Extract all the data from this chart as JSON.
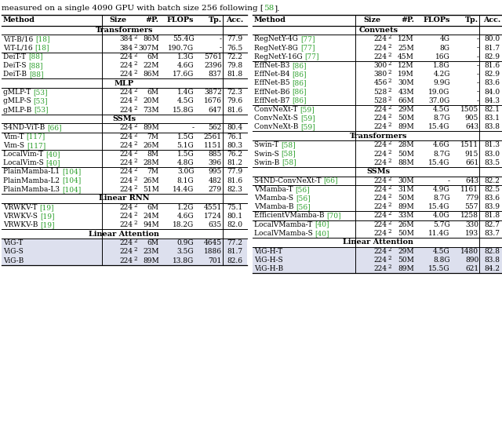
{
  "title_parts": [
    {
      "text": "measured on a single 4090 GPU with batch size 256 following [",
      "color": "black"
    },
    {
      "text": "58",
      "color": "#2ca02c"
    },
    {
      "text": "].",
      "color": "black"
    }
  ],
  "left_table": {
    "sections": [
      {
        "section_title": "Transformers",
        "rows": [
          [
            "ViT-B/16 ",
            "[18]",
            "384",
            "86M",
            "55.4G",
            "-",
            "77.9"
          ],
          [
            "ViT-L/16 ",
            "[18]",
            "384",
            "307M",
            "190.7G",
            "-",
            "76.5"
          ]
        ]
      },
      {
        "section_title": null,
        "rows": [
          [
            "DeiT-T ",
            "[88]",
            "224",
            "6M",
            "1.3G",
            "5761",
            "72.2"
          ],
          [
            "DeiT-S ",
            "[88]",
            "224",
            "22M",
            "4.6G",
            "2396",
            "79.8"
          ],
          [
            "DeiT-B ",
            "[88]",
            "224",
            "86M",
            "17.6G",
            "837",
            "81.8"
          ]
        ]
      },
      {
        "section_title": "MLP",
        "rows": [
          [
            "gMLP-T ",
            "[53]",
            "224",
            "6M",
            "1.4G",
            "3872",
            "72.3"
          ],
          [
            "gMLP-S ",
            "[53]",
            "224",
            "20M",
            "4.5G",
            "1676",
            "79.6"
          ],
          [
            "gMLP-B ",
            "[53]",
            "224",
            "73M",
            "15.8G",
            "647",
            "81.6"
          ]
        ]
      },
      {
        "section_title": "SSMs",
        "rows": [
          [
            "S4ND-ViT-B ",
            "[66]",
            "224",
            "89M",
            "-",
            "562",
            "80.4"
          ]
        ]
      },
      {
        "section_title": null,
        "rows": [
          [
            "Vim-T ",
            "[117]",
            "224",
            "7M",
            "1.5G",
            "2561",
            "76.1"
          ],
          [
            "Vim-S ",
            "[117]",
            "224",
            "26M",
            "5.1G",
            "1151",
            "80.3"
          ]
        ]
      },
      {
        "section_title": null,
        "rows": [
          [
            "LocalVim-T ",
            "[40]",
            "224",
            "8M",
            "1.5G",
            "885",
            "76.2"
          ],
          [
            "LocalVim-S ",
            "[40]",
            "224",
            "28M",
            "4.8G",
            "396",
            "81.2"
          ]
        ]
      },
      {
        "section_title": null,
        "rows": [
          [
            "PlainMamba-L1 ",
            "[104]",
            "224",
            "7M",
            "3.0G",
            "995",
            "77.9"
          ],
          [
            "PlainMamba-L2 ",
            "[104]",
            "224",
            "26M",
            "8.1G",
            "482",
            "81.6"
          ],
          [
            "PlainMamba-L3 ",
            "[104]",
            "224",
            "51M",
            "14.4G",
            "279",
            "82.3"
          ]
        ]
      },
      {
        "section_title": "Linear RNN",
        "rows": [
          [
            "VRWKV-T ",
            "[19]",
            "224",
            "6M",
            "1.2G",
            "4551",
            "75.1"
          ],
          [
            "VRWKV-S ",
            "[19]",
            "224",
            "24M",
            "4.6G",
            "1724",
            "80.1"
          ],
          [
            "VRWKV-B ",
            "[19]",
            "224",
            "94M",
            "18.2G",
            "635",
            "82.0"
          ]
        ]
      },
      {
        "section_title": "Linear Attention",
        "highlight": true,
        "rows": [
          [
            "ViG-T",
            "",
            "224",
            "6M",
            "0.9G",
            "4645",
            "77.2"
          ],
          [
            "ViG-S",
            "",
            "224",
            "23M",
            "3.5G",
            "1886",
            "81.7"
          ],
          [
            "ViG-B",
            "",
            "224",
            "89M",
            "13.8G",
            "701",
            "82.6"
          ]
        ]
      }
    ]
  },
  "right_table": {
    "sections": [
      {
        "section_title": "Convnets",
        "rows": [
          [
            "RegNetY-4G ",
            "[77]",
            "224",
            "12M",
            "4G",
            "-",
            "80.0"
          ],
          [
            "RegNetY-8G ",
            "[77]",
            "224",
            "25M",
            "8G",
            "-",
            "81.7"
          ],
          [
            "RegNetY-16G ",
            "[77]",
            "224",
            "45M",
            "16G",
            "-",
            "82.9"
          ]
        ]
      },
      {
        "section_title": null,
        "rows": [
          [
            "EffNet-B3 ",
            "[86]",
            "300",
            "12M",
            "1.8G",
            "-",
            "81.6"
          ],
          [
            "EffNet-B4 ",
            "[86]",
            "380",
            "19M",
            "4.2G",
            "-",
            "82.9"
          ],
          [
            "EffNet-B5 ",
            "[86]",
            "456",
            "30M",
            "9.9G",
            "-",
            "83.6"
          ],
          [
            "EffNet-B6 ",
            "[86]",
            "528",
            "43M",
            "19.0G",
            "-",
            "84.0"
          ],
          [
            "EffNet-B7 ",
            "[86]",
            "528",
            "66M",
            "37.0G",
            "-",
            "84.3"
          ]
        ]
      },
      {
        "section_title": null,
        "rows": [
          [
            "ConvNeXt-T ",
            "[59]",
            "224",
            "29M",
            "4.5G",
            "1505",
            "82.1"
          ],
          [
            "ConvNeXt-S ",
            "[59]",
            "224",
            "50M",
            "8.7G",
            "905",
            "83.1"
          ],
          [
            "ConvNeXt-B ",
            "[59]",
            "224",
            "89M",
            "15.4G",
            "643",
            "83.8"
          ]
        ]
      },
      {
        "section_title": "Transformers",
        "rows": [
          [
            "Swin-T ",
            "[58]",
            "224",
            "28M",
            "4.6G",
            "1511",
            "81.3"
          ],
          [
            "Swin-S ",
            "[58]",
            "224",
            "50M",
            "8.7G",
            "915",
            "83.0"
          ],
          [
            "Swin-B ",
            "[58]",
            "224",
            "88M",
            "15.4G",
            "661",
            "83.5"
          ]
        ]
      },
      {
        "section_title": "SSMs",
        "rows": [
          [
            "S4ND-ConvNeXt-T ",
            "[66]",
            "224",
            "30M",
            "-",
            "643",
            "82.2"
          ]
        ]
      },
      {
        "section_title": null,
        "rows": [
          [
            "VMamba-T ",
            "[56]",
            "224",
            "31M",
            "4.9G",
            "1161",
            "82.5"
          ],
          [
            "VMamba-S ",
            "[56]",
            "224",
            "50M",
            "8.7G",
            "779",
            "83.6"
          ],
          [
            "VMamba-B ",
            "[56]",
            "224",
            "89M",
            "15.4G",
            "557",
            "83.9"
          ]
        ]
      },
      {
        "section_title": null,
        "rows": [
          [
            "EfficientVMamba-B ",
            "[70]",
            "224",
            "33M",
            "4.0G",
            "1258",
            "81.8"
          ]
        ]
      },
      {
        "section_title": null,
        "rows": [
          [
            "LocalVMamba-T ",
            "[40]",
            "224",
            "26M",
            "5.7G",
            "330",
            "82.7"
          ],
          [
            "LocalVMamba-S ",
            "[40]",
            "224",
            "50M",
            "11.4G",
            "193",
            "83.7"
          ]
        ]
      },
      {
        "section_title": "Linear Attention",
        "highlight": true,
        "rows": [
          [
            "ViG-H-T",
            "",
            "224",
            "29M",
            "4.5G",
            "1480",
            "82.8"
          ],
          [
            "ViG-H-S",
            "",
            "224",
            "50M",
            "8.8G",
            "890",
            "83.8"
          ],
          [
            "ViG-H-B",
            "",
            "224",
            "89M",
            "15.5G",
            "621",
            "84.2"
          ]
        ]
      }
    ]
  }
}
